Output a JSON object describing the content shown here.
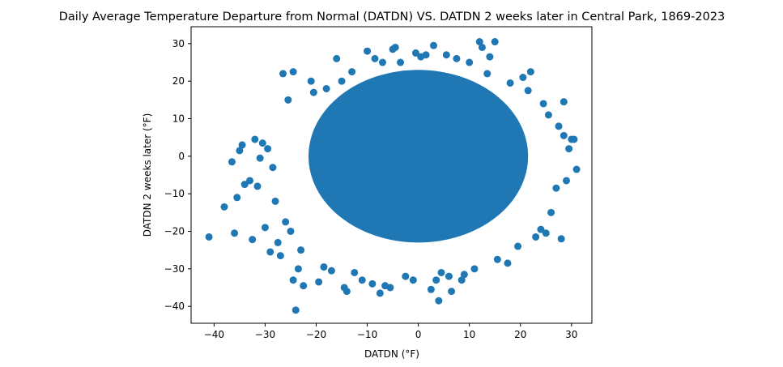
{
  "chart_data": {
    "type": "scatter",
    "title": "Daily Average Temperature Departure from Normal (DATDN) VS. DATDN 2 weeks later in Central Park, 1869-2023",
    "xlabel": "DATDN (°F)",
    "ylabel": "DATDN 2 weeks later (°F)",
    "xlim": [
      -44.5,
      34
    ],
    "ylim": [
      -44.5,
      34.5
    ],
    "xticks": [
      -40,
      -30,
      -20,
      -10,
      0,
      10,
      20,
      30
    ],
    "yticks": [
      -40,
      -30,
      -20,
      -10,
      0,
      10,
      20,
      30
    ],
    "xtick_labels": [
      "−40",
      "−30",
      "−20",
      "−10",
      "0",
      "10",
      "20",
      "30"
    ],
    "ytick_labels": [
      "−40",
      "−30",
      "−20",
      "−10",
      "0",
      "10",
      "20",
      "30"
    ],
    "grid": false,
    "color": "#1f77b4",
    "series": [
      {
        "core": {
          "center": [
            0,
            0
          ],
          "x_radius": 21.5,
          "y_radius": 23
        },
        "points": [
          [
            -41,
            -21.5
          ],
          [
            -38,
            -13.5
          ],
          [
            -36.5,
            -1.5
          ],
          [
            -36,
            -20.5
          ],
          [
            -35.5,
            -11
          ],
          [
            -35,
            1.5
          ],
          [
            -34.5,
            3
          ],
          [
            -34,
            -7.5
          ],
          [
            -33,
            -6.5
          ],
          [
            -32.5,
            -22.2
          ],
          [
            -32,
            4.5
          ],
          [
            -31.5,
            -8
          ],
          [
            -31,
            -0.5
          ],
          [
            -30.5,
            3.5
          ],
          [
            -30,
            -19
          ],
          [
            -29.5,
            2
          ],
          [
            -29,
            -25.5
          ],
          [
            -28.5,
            -3
          ],
          [
            -28,
            -12
          ],
          [
            -27.5,
            -23
          ],
          [
            -27,
            -26.5
          ],
          [
            -26.5,
            22
          ],
          [
            -26,
            -17.5
          ],
          [
            -25.5,
            15
          ],
          [
            -25,
            -20
          ],
          [
            -24.5,
            22.5
          ],
          [
            -24.5,
            -33
          ],
          [
            -24,
            -41
          ],
          [
            -23.5,
            -30
          ],
          [
            -23,
            -25
          ],
          [
            -22.5,
            -34.5
          ],
          [
            -21,
            20
          ],
          [
            -20.5,
            17
          ],
          [
            -19.5,
            -33.5
          ],
          [
            -18.5,
            -29.5
          ],
          [
            -18,
            18
          ],
          [
            -17,
            -30.5
          ],
          [
            -16,
            26
          ],
          [
            -15,
            20
          ],
          [
            -14.5,
            -35
          ],
          [
            -14,
            -36
          ],
          [
            -13,
            22.5
          ],
          [
            -12.5,
            -31
          ],
          [
            -11,
            -33
          ],
          [
            -10,
            28
          ],
          [
            -9,
            -34
          ],
          [
            -8.5,
            26
          ],
          [
            -7.5,
            -36.5
          ],
          [
            -7,
            25
          ],
          [
            -6.5,
            -34.5
          ],
          [
            -5.5,
            -35
          ],
          [
            -5,
            28.5
          ],
          [
            -4.5,
            29
          ],
          [
            -3.5,
            25
          ],
          [
            -2.5,
            -32
          ],
          [
            -1,
            -33
          ],
          [
            -0.5,
            27.5
          ],
          [
            0.5,
            26.5
          ],
          [
            1.5,
            27
          ],
          [
            2.5,
            -35.5
          ],
          [
            3,
            29.5
          ],
          [
            3.5,
            -33
          ],
          [
            4,
            -38.5
          ],
          [
            4.5,
            -31
          ],
          [
            5.5,
            27
          ],
          [
            6,
            -32
          ],
          [
            6.5,
            -36
          ],
          [
            7.5,
            26
          ],
          [
            8.5,
            -33
          ],
          [
            9,
            -31.5
          ],
          [
            10,
            25
          ],
          [
            11,
            -30
          ],
          [
            12,
            30.5
          ],
          [
            12.5,
            29
          ],
          [
            13.5,
            22
          ],
          [
            14,
            26.5
          ],
          [
            15,
            30.5
          ],
          [
            15.5,
            -27.5
          ],
          [
            17.5,
            -28.5
          ],
          [
            18,
            19.5
          ],
          [
            19.5,
            -24
          ],
          [
            20.5,
            21
          ],
          [
            21.5,
            17.5
          ],
          [
            22,
            22.5
          ],
          [
            23,
            -21.5
          ],
          [
            24,
            -19.5
          ],
          [
            24.5,
            14
          ],
          [
            25,
            -20.5
          ],
          [
            25.5,
            11
          ],
          [
            26,
            -15
          ],
          [
            27,
            -8.5
          ],
          [
            27.5,
            8
          ],
          [
            28,
            -22
          ],
          [
            28.5,
            14.5
          ],
          [
            28.5,
            5.5
          ],
          [
            29,
            -6.5
          ],
          [
            29.5,
            2
          ],
          [
            30,
            4.5
          ],
          [
            30.5,
            4.5
          ],
          [
            31,
            -3.5
          ]
        ]
      }
    ]
  }
}
